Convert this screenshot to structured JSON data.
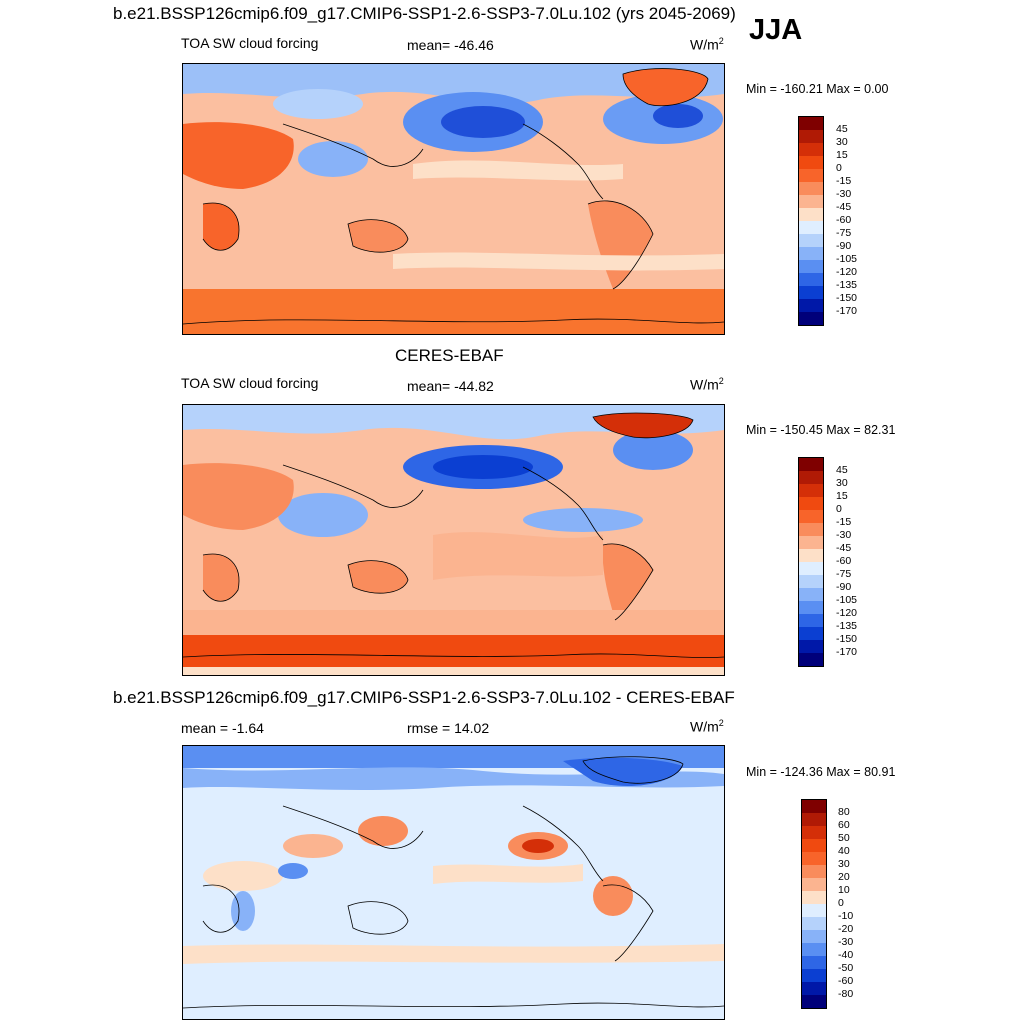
{
  "season": "JJA",
  "panels": [
    {
      "title": "b.e21.BSSP126cmip6.f09_g17.CMIP6-SSP1-2.6-SSP3-7.0Lu.102 (yrs 2045-2069)",
      "left_label": "TOA SW cloud forcing",
      "center_label": "mean= -46.46",
      "units": "W/m",
      "units_sup": "2",
      "minmax": "Min = -160.21 Max =   0.00",
      "colorbar_labels": [
        "45",
        "30",
        "15",
        "0",
        "-15",
        "-30",
        "-45",
        "-60",
        "-75",
        "-90",
        "-105",
        "-120",
        "-135",
        "-150",
        "-170"
      ]
    },
    {
      "title": "CERES-EBAF",
      "left_label": "TOA SW cloud forcing",
      "center_label": "mean= -44.82",
      "units": "W/m",
      "units_sup": "2",
      "minmax": "Min = -150.45 Max =  82.31",
      "colorbar_labels": [
        "45",
        "30",
        "15",
        "0",
        "-15",
        "-30",
        "-45",
        "-60",
        "-75",
        "-90",
        "-105",
        "-120",
        "-135",
        "-150",
        "-170"
      ]
    },
    {
      "title": "b.e21.BSSP126cmip6.f09_g17.CMIP6-SSP1-2.6-SSP3-7.0Lu.102 - CERES-EBAF",
      "left_label": "mean =  -1.64",
      "center_label": "rmse =  14.02",
      "units": "W/m",
      "units_sup": "2",
      "minmax": "Min = -124.36 Max =  80.91",
      "colorbar_labels": [
        "80",
        "60",
        "50",
        "40",
        "30",
        "20",
        "10",
        "0",
        "-10",
        "-20",
        "-30",
        "-40",
        "-50",
        "-60",
        "-80"
      ]
    }
  ],
  "colorbar_colors": [
    "#7f0000",
    "#b01a05",
    "#d42f08",
    "#f04a10",
    "#f8642a",
    "#f98c5c",
    "#fbb490",
    "#fde0c8",
    "#dfeeff",
    "#b5d2fb",
    "#88b2f8",
    "#5a8ff2",
    "#2e66e6",
    "#0b3fd2",
    "#0018a8",
    "#00007a"
  ]
}
